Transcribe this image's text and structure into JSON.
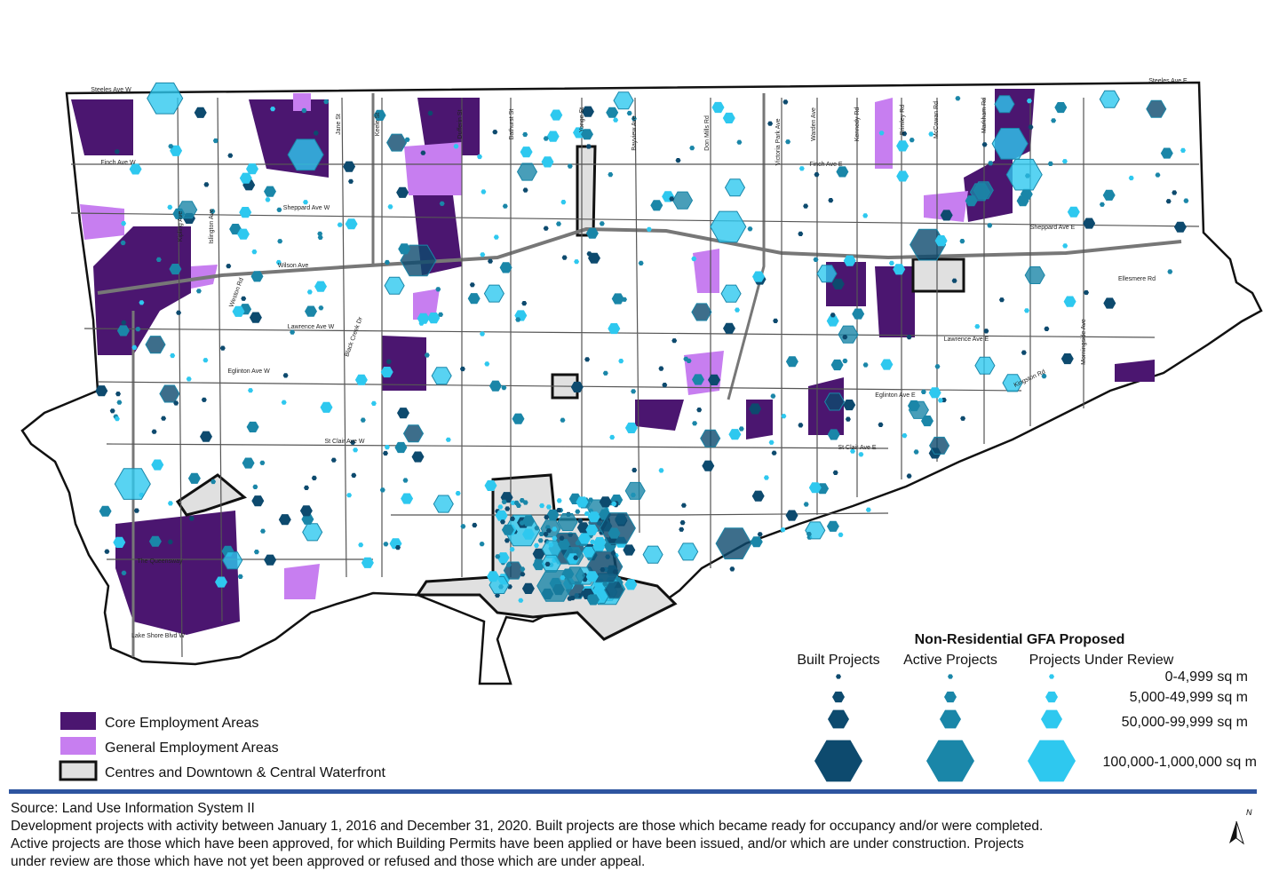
{
  "map": {
    "street_labels": [
      "Steeles Ave W",
      "Steeles Ave E",
      "Finch Ave W",
      "Finch Ave E",
      "Sheppard Ave W",
      "Sheppard Ave E",
      "Wilson Ave",
      "Lawrence Ave W",
      "Lawrence Ave E",
      "Eglinton Ave W",
      "Eglinton Ave E",
      "St Clair Ave W",
      "St Clair Ave E",
      "The Queensway",
      "Lake Shore Blvd W",
      "Ellesmere Rd",
      "Kingston Rd",
      "Kipling Ave",
      "Islington Ave",
      "Weston Rd",
      "Jane St",
      "Keele St",
      "Dufferin St",
      "Bathurst St",
      "Yonge St",
      "Bayview Ave",
      "Don Mills Rd",
      "Victoria Park Ave",
      "Warden Ave",
      "Kennedy Rd",
      "Brimley Rd",
      "McCowan Rd",
      "Markham Rd",
      "Morningside Ave",
      "Black Creek Dr"
    ]
  },
  "legend": {
    "title": "Non-Residential GFA Proposed",
    "columns": [
      "Built Projects",
      "Active Projects",
      "Projects Under Review"
    ],
    "sizes": [
      "0-4,999 sq m",
      "5,000-49,999 sq m",
      "50,000-99,999 sq m",
      "100,000-1,000,000 sq m"
    ],
    "areas": [
      "Core Employment Areas",
      "General Employment Areas",
      "Centres and Downtown & Central Waterfront"
    ]
  },
  "footer": {
    "source": "Source: Land Use Information System II",
    "notes": [
      "Development projects with activity between January 1, 2016 and December 31, 2020. Built projects are those which became ready for occupancy and/or were completed.",
      "Active projects are those which have been approved, for which Building Permits have been applied or have been issued, and/or which are under construction. Projects",
      "under review are those which have not yet been approved or refused and those which are under appeal."
    ],
    "north": "N"
  }
}
